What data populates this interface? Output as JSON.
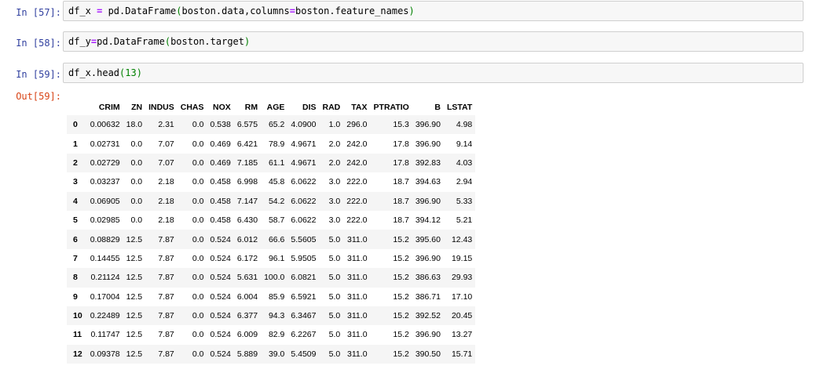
{
  "cells": [
    {
      "prompt": "In [57]:",
      "code": [
        {
          "t": "df_x ",
          "k": "plain"
        },
        {
          "t": "=",
          "k": "op"
        },
        {
          "t": " pd.DataFrame",
          "k": "plain"
        },
        {
          "t": "(",
          "k": "paren"
        },
        {
          "t": "boston.data,columns",
          "k": "plain"
        },
        {
          "t": "=",
          "k": "op"
        },
        {
          "t": "boston.feature_names",
          "k": "plain"
        },
        {
          "t": ")",
          "k": "paren"
        }
      ]
    },
    {
      "prompt": "In [58]:",
      "code": [
        {
          "t": "df_y",
          "k": "plain"
        },
        {
          "t": "=",
          "k": "op"
        },
        {
          "t": "pd.DataFrame",
          "k": "plain"
        },
        {
          "t": "(",
          "k": "paren"
        },
        {
          "t": "boston.target",
          "k": "plain"
        },
        {
          "t": ")",
          "k": "paren"
        }
      ]
    },
    {
      "prompt": "In [59]:",
      "code": [
        {
          "t": "df_x.head",
          "k": "plain"
        },
        {
          "t": "(",
          "k": "paren"
        },
        {
          "t": "13",
          "k": "num"
        },
        {
          "t": ")",
          "k": "paren"
        }
      ]
    }
  ],
  "output": {
    "prompt": "Out[59]:",
    "columns": [
      "CRIM",
      "ZN",
      "INDUS",
      "CHAS",
      "NOX",
      "RM",
      "AGE",
      "DIS",
      "RAD",
      "TAX",
      "PTRATIO",
      "B",
      "LSTAT"
    ],
    "rows": [
      {
        "index": "0",
        "values": [
          "0.00632",
          "18.0",
          "2.31",
          "0.0",
          "0.538",
          "6.575",
          "65.2",
          "4.0900",
          "1.0",
          "296.0",
          "15.3",
          "396.90",
          "4.98"
        ]
      },
      {
        "index": "1",
        "values": [
          "0.02731",
          "0.0",
          "7.07",
          "0.0",
          "0.469",
          "6.421",
          "78.9",
          "4.9671",
          "2.0",
          "242.0",
          "17.8",
          "396.90",
          "9.14"
        ]
      },
      {
        "index": "2",
        "values": [
          "0.02729",
          "0.0",
          "7.07",
          "0.0",
          "0.469",
          "7.185",
          "61.1",
          "4.9671",
          "2.0",
          "242.0",
          "17.8",
          "392.83",
          "4.03"
        ]
      },
      {
        "index": "3",
        "values": [
          "0.03237",
          "0.0",
          "2.18",
          "0.0",
          "0.458",
          "6.998",
          "45.8",
          "6.0622",
          "3.0",
          "222.0",
          "18.7",
          "394.63",
          "2.94"
        ]
      },
      {
        "index": "4",
        "values": [
          "0.06905",
          "0.0",
          "2.18",
          "0.0",
          "0.458",
          "7.147",
          "54.2",
          "6.0622",
          "3.0",
          "222.0",
          "18.7",
          "396.90",
          "5.33"
        ]
      },
      {
        "index": "5",
        "values": [
          "0.02985",
          "0.0",
          "2.18",
          "0.0",
          "0.458",
          "6.430",
          "58.7",
          "6.0622",
          "3.0",
          "222.0",
          "18.7",
          "394.12",
          "5.21"
        ]
      },
      {
        "index": "6",
        "values": [
          "0.08829",
          "12.5",
          "7.87",
          "0.0",
          "0.524",
          "6.012",
          "66.6",
          "5.5605",
          "5.0",
          "311.0",
          "15.2",
          "395.60",
          "12.43"
        ]
      },
      {
        "index": "7",
        "values": [
          "0.14455",
          "12.5",
          "7.87",
          "0.0",
          "0.524",
          "6.172",
          "96.1",
          "5.9505",
          "5.0",
          "311.0",
          "15.2",
          "396.90",
          "19.15"
        ]
      },
      {
        "index": "8",
        "values": [
          "0.21124",
          "12.5",
          "7.87",
          "0.0",
          "0.524",
          "5.631",
          "100.0",
          "6.0821",
          "5.0",
          "311.0",
          "15.2",
          "386.63",
          "29.93"
        ]
      },
      {
        "index": "9",
        "values": [
          "0.17004",
          "12.5",
          "7.87",
          "0.0",
          "0.524",
          "6.004",
          "85.9",
          "6.5921",
          "5.0",
          "311.0",
          "15.2",
          "386.71",
          "17.10"
        ]
      },
      {
        "index": "10",
        "values": [
          "0.22489",
          "12.5",
          "7.87",
          "0.0",
          "0.524",
          "6.377",
          "94.3",
          "6.3467",
          "5.0",
          "311.0",
          "15.2",
          "392.52",
          "20.45"
        ]
      },
      {
        "index": "11",
        "values": [
          "0.11747",
          "12.5",
          "7.87",
          "0.0",
          "0.524",
          "6.009",
          "82.9",
          "6.2267",
          "5.0",
          "311.0",
          "15.2",
          "396.90",
          "13.27"
        ]
      },
      {
        "index": "12",
        "values": [
          "0.09378",
          "12.5",
          "7.87",
          "0.0",
          "0.524",
          "5.889",
          "39.0",
          "5.4509",
          "5.0",
          "311.0",
          "15.2",
          "390.50",
          "15.71"
        ]
      }
    ]
  },
  "colors": {
    "prompt_in": "#303f9f",
    "prompt_out": "#d84315",
    "code_bg": "#f7f7f7",
    "code_border": "#cfcfcf",
    "operator": "#aa22ff",
    "paren": "#008000",
    "row_stripe": "#f5f5f5"
  }
}
